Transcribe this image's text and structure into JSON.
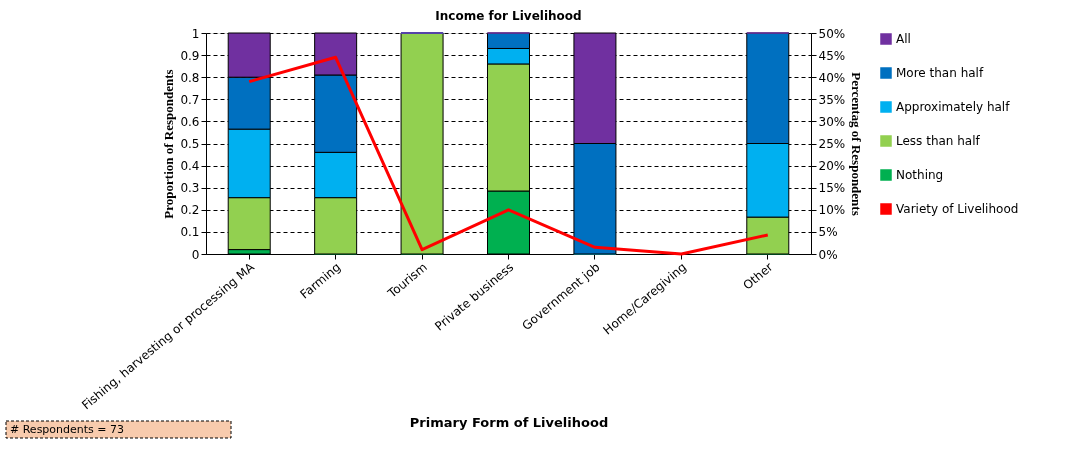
{
  "chart_data": {
    "type": "bar",
    "stacked": true,
    "title": "Income for Livelihood",
    "xlabel": "Primary Form of Livelihood",
    "ylabel": "Proportion of Respondents",
    "y2label": "Percentag of Respondents",
    "categories": [
      "Fishing, harvesting or processing MA",
      "Farming",
      "Tourism",
      "Private business",
      "Government job",
      "Home/Caregiving",
      "Other"
    ],
    "series": [
      {
        "name": "Nothing",
        "color": "#00b050",
        "values": [
          0.02,
          0,
          0,
          0.285,
          0,
          null,
          0
        ]
      },
      {
        "name": "Less than half",
        "color": "#92d050",
        "values": [
          0.235,
          0.255,
          1,
          0.575,
          0,
          null,
          0.167
        ]
      },
      {
        "name": "Approximately half",
        "color": "#00b0f0",
        "values": [
          0.31,
          0.205,
          0,
          0.07,
          0,
          null,
          0.333
        ]
      },
      {
        "name": "More than half",
        "color": "#0070c0",
        "values": [
          0.235,
          0.35,
          0,
          0.07,
          0.5,
          null,
          0.5
        ]
      },
      {
        "name": "All",
        "color": "#7030a0",
        "values": [
          0.2,
          0.19,
          0,
          0,
          0.5,
          null,
          0
        ]
      },
      {
        "name": "Variety of Livelihood",
        "color": "#ff0000",
        "type": "line",
        "axis": "y2",
        "values": [
          39,
          44.5,
          1,
          10,
          1.5,
          0,
          4.3
        ]
      }
    ],
    "ylim": [
      0,
      1
    ],
    "yticks": [
      0,
      {
        "value": 0.1,
        "label": "0.1"
      },
      {
        "value": 0.2,
        "label": "0.2"
      },
      {
        "value": 0.3,
        "label": "0.3"
      },
      {
        "value": 0.4,
        "label": "0.4"
      },
      {
        "value": 0.5,
        "label": "0.5"
      },
      {
        "value": 0.6,
        "label": "0.6"
      },
      {
        "value": 0.7,
        "label": "0.7"
      },
      {
        "value": 0.8,
        "label": "0.8"
      },
      {
        "value": 0.9,
        "label": "0.9"
      },
      1
    ],
    "y2lim": [
      0,
      50
    ],
    "y2ticks": [
      {
        "value": 0,
        "label": "0%"
      },
      {
        "value": 5,
        "label": "5%"
      },
      {
        "value": 10,
        "label": "10%"
      },
      {
        "value": 15,
        "label": "15%"
      },
      {
        "value": 20,
        "label": "20%"
      },
      {
        "value": 25,
        "label": "25%"
      },
      {
        "value": 30,
        "label": "30%"
      },
      {
        "value": 35,
        "label": "35%"
      },
      {
        "value": 40,
        "label": "40%"
      },
      {
        "value": 45,
        "label": "45%"
      },
      {
        "value": 50,
        "label": "50%"
      }
    ],
    "grid": "y",
    "legend": "right",
    "marker": "none",
    "line_style": "solid",
    "annotations": [
      "# Respondents = 73"
    ]
  }
}
